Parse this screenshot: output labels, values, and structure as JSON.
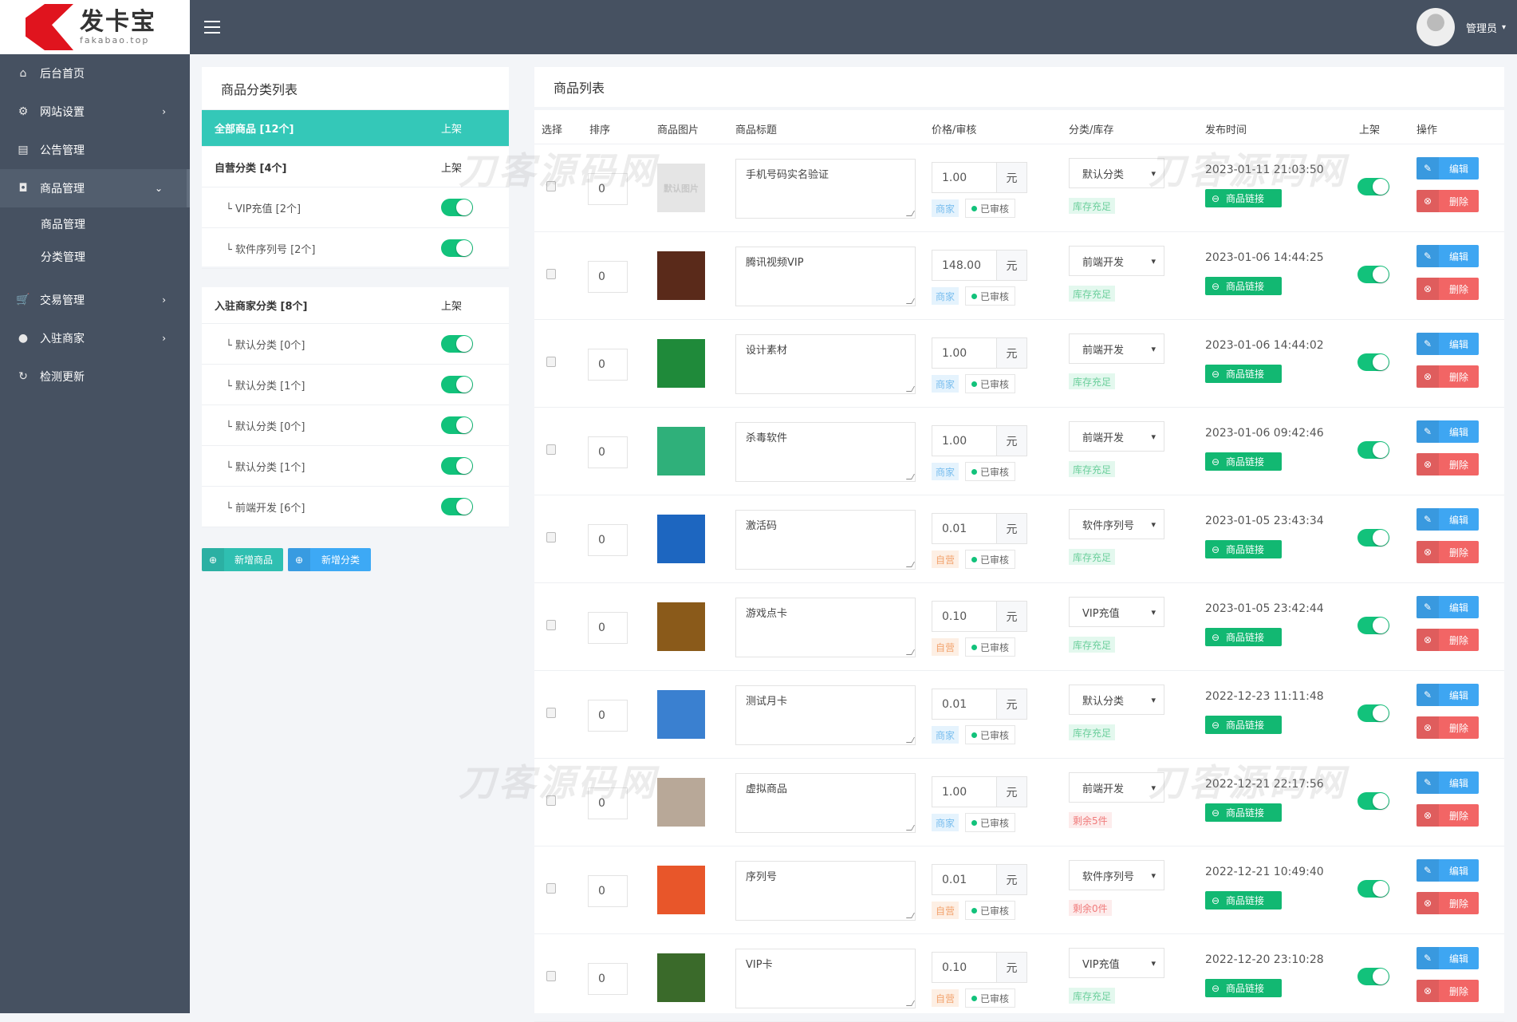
{
  "brand": {
    "name": "发卡宝",
    "domain": "fakabao.top"
  },
  "topbar": {
    "user": "管理员"
  },
  "sidebar": {
    "items": [
      {
        "label": "后台首页",
        "icon": "home-icon",
        "glyph": "⌂"
      },
      {
        "label": "网站设置",
        "icon": "gear-icon",
        "glyph": "⚙",
        "chev": "›"
      },
      {
        "label": "公告管理",
        "icon": "news-icon",
        "glyph": "▤"
      },
      {
        "label": "商品管理",
        "icon": "bag-icon",
        "glyph": "◘",
        "chev": "⌄",
        "active": true
      },
      {
        "label": "交易管理",
        "icon": "cart-icon",
        "glyph": "🛒",
        "chev": "›"
      },
      {
        "label": "入驻商家",
        "icon": "user-icon",
        "glyph": "●",
        "chev": "›"
      },
      {
        "label": "检测更新",
        "icon": "refresh-icon",
        "glyph": "↻"
      }
    ],
    "subitems": [
      "商品管理",
      "分类管理"
    ]
  },
  "categories": {
    "title": "商品分类列表",
    "all": {
      "label": "全部商品 [12个]",
      "status": "上架"
    },
    "self": {
      "label": "自营分类 [4个]",
      "status": "上架",
      "items": [
        "└ VIP充值 [2个]",
        "└ 软件序列号 [2个]"
      ]
    },
    "merchant": {
      "label": "入驻商家分类 [8个]",
      "status": "上架",
      "items": [
        "└ 默认分类 [0个]",
        "└ 默认分类 [1个]",
        "└ 默认分类 [0个]",
        "└ 默认分类 [1个]",
        "└ 前端开发 [6个]"
      ]
    },
    "add_product": "新增商品",
    "add_category": "新增分类"
  },
  "products": {
    "title": "商品列表",
    "headers": [
      "选择",
      "排序",
      "商品图片",
      "商品标题",
      "价格/审核",
      "分类/库存",
      "发布时间",
      "上架",
      "操作"
    ],
    "currency": "元",
    "audit": "已审核",
    "link_label": "商品链接",
    "edit_label": "编辑",
    "delete_label": "删除",
    "default_image": "默认图片",
    "rows": [
      {
        "sort": "0",
        "title": "手机号码实名验证",
        "price": "1.00",
        "owner": "商家",
        "category": "默认分类",
        "stock": "库存充足",
        "low": false,
        "date": "2023-01-11 21:03:50",
        "img": "#e5e5e5"
      },
      {
        "sort": "0",
        "title": "腾讯视频VIP",
        "price": "148.00",
        "owner": "商家",
        "category": "前端开发",
        "stock": "库存充足",
        "low": false,
        "date": "2023-01-06 14:44:25",
        "img": "#5a2a1a"
      },
      {
        "sort": "0",
        "title": "设计素材",
        "price": "1.00",
        "owner": "商家",
        "category": "前端开发",
        "stock": "库存充足",
        "low": false,
        "date": "2023-01-06 14:44:02",
        "img": "#1f8a3a"
      },
      {
        "sort": "0",
        "title": "杀毒软件",
        "price": "1.00",
        "owner": "商家",
        "category": "前端开发",
        "stock": "库存充足",
        "low": false,
        "date": "2023-01-06 09:42:46",
        "img": "#2fb07a"
      },
      {
        "sort": "0",
        "title": "激活码",
        "price": "0.01",
        "owner": "自营",
        "category": "软件序列号",
        "stock": "库存充足",
        "low": false,
        "date": "2023-01-05 23:43:34",
        "img": "#1d66c0"
      },
      {
        "sort": "0",
        "title": "游戏点卡",
        "price": "0.10",
        "owner": "自营",
        "category": "VIP充值",
        "stock": "库存充足",
        "low": false,
        "date": "2023-01-05 23:42:44",
        "img": "#8a5a1a"
      },
      {
        "sort": "0",
        "title": "测试月卡",
        "price": "0.01",
        "owner": "商家",
        "category": "默认分类",
        "stock": "库存充足",
        "low": false,
        "date": "2022-12-23 11:11:48",
        "img": "#3a80d0"
      },
      {
        "sort": "0",
        "title": "虚拟商品",
        "price": "1.00",
        "owner": "商家",
        "category": "前端开发",
        "stock": "剩余5件",
        "low": true,
        "date": "2022-12-21 22:17:56",
        "img": "#b8a898"
      },
      {
        "sort": "0",
        "title": "序列号",
        "price": "0.01",
        "owner": "自营",
        "category": "软件序列号",
        "stock": "剩余0件",
        "low": true,
        "date": "2022-12-21 10:49:40",
        "img": "#e8562a"
      },
      {
        "sort": "0",
        "title": "VIP卡",
        "price": "0.10",
        "owner": "自营",
        "category": "VIP充值",
        "stock": "库存充足",
        "low": false,
        "date": "2022-12-20 23:10:28",
        "img": "#3a6a2a"
      }
    ]
  },
  "watermark": "刀客源码网",
  "colors": {
    "sidebar": "#465161",
    "teal": "#34c8b8",
    "green": "#12c27b",
    "blue": "#3ea6f2",
    "red": "#f26565"
  }
}
